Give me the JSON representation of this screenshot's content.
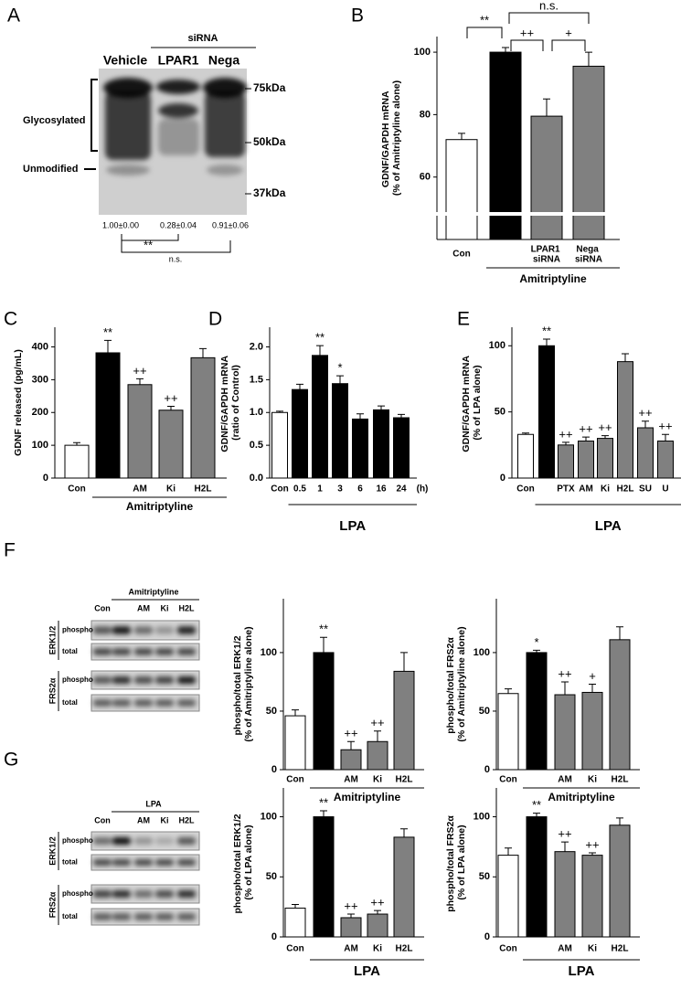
{
  "panel_labels": [
    "A",
    "B",
    "C",
    "D",
    "E",
    "F",
    "G"
  ],
  "blot_a": {
    "group_label": "siRNA",
    "lanes": [
      "Vehicle",
      "LPAR1",
      "Nega"
    ],
    "markers": [
      "75kDa",
      "50kDa",
      "37kDa"
    ],
    "glycosylated": "Glycosylated",
    "unmodified": "Unmodified",
    "quantification": [
      "1.00±0.00",
      "0.28±0.04",
      "0.91±0.06"
    ],
    "comparisons": [
      "**",
      "n.s."
    ]
  },
  "blot_f": {
    "group_label": "Amitriptyline",
    "lanes": [
      "Con",
      null,
      "AM",
      "Ki",
      "H2L"
    ],
    "proteins": [
      "ERK1/2",
      "FRS2α"
    ],
    "rows": [
      "phospho",
      "total",
      "phospho",
      "total"
    ]
  },
  "blot_g": {
    "group_label": "LPA",
    "lanes": [
      "Con",
      null,
      "AM",
      "Ki",
      "H2L"
    ],
    "proteins": [
      "ERK1/2",
      "FRS2α"
    ],
    "rows": [
      "phospho",
      "total",
      "phospho",
      "total"
    ]
  },
  "chart_data": [
    {
      "type": "bar",
      "y_label": "GDNF/GAPDH mRNA\n(% of Amitriptyline alone)",
      "categories": [
        "Con",
        null,
        "LPAR1\nsiRNA",
        "Nega\nsiRNA"
      ],
      "values": [
        72,
        100,
        79.5,
        95.5
      ],
      "errors": [
        2,
        1.5,
        5.5,
        4.5
      ],
      "colors": [
        "#ffffff",
        "#000000",
        "#808080",
        "#808080"
      ],
      "comparisons": [
        "**",
        "n.s.",
        "++",
        "+"
      ],
      "group_label": "Amitriptyline",
      "ylim": [
        40,
        105
      ],
      "yticks": [
        60,
        80,
        100
      ]
    },
    {
      "type": "bar",
      "y_label": "GDNF released (pg/mL)",
      "categories": [
        "Con",
        null,
        "AM",
        "Ki",
        "H2L"
      ],
      "values": [
        100,
        382,
        285,
        207,
        367
      ],
      "errors": [
        8,
        38,
        18,
        12,
        28
      ],
      "colors": [
        "#ffffff",
        "#000000",
        "#808080",
        "#808080",
        "#808080"
      ],
      "bar_labels": [
        null,
        "**",
        "++",
        "++",
        null
      ],
      "group_label": "Amitriptyline",
      "ylim": [
        0,
        460
      ],
      "yticks": [
        0,
        100,
        200,
        300,
        400
      ]
    },
    {
      "type": "bar",
      "y_label": "GDNF/GAPDH mRNA\n(ratio of Control)",
      "categories": [
        "Con",
        "0.5",
        "1",
        "3",
        "6",
        "16",
        "24"
      ],
      "x_unit": "(h)",
      "values": [
        1.0,
        1.35,
        1.87,
        1.44,
        0.9,
        1.04,
        0.92
      ],
      "errors": [
        0.02,
        0.08,
        0.15,
        0.12,
        0.08,
        0.06,
        0.05
      ],
      "colors": [
        "#ffffff",
        "#000000",
        "#000000",
        "#000000",
        "#000000",
        "#000000",
        "#000000"
      ],
      "bar_labels": [
        null,
        null,
        "**",
        "*",
        null,
        null,
        null
      ],
      "group_label": "LPA",
      "ylim": [
        0,
        2.3
      ],
      "yticks": [
        {
          "value": 0,
          "label": "0.0"
        },
        0.5,
        {
          "value": 1,
          "label": "1.0"
        },
        1.5,
        {
          "value": 2,
          "label": "2.0"
        }
      ]
    },
    {
      "type": "bar",
      "y_label": "GDNF/GAPDH mRNA\n(% of LPA alone)",
      "categories": [
        "Con",
        null,
        "PTX",
        "AM",
        "Ki",
        "H2L",
        "SU",
        "U"
      ],
      "values": [
        33,
        100,
        25,
        28,
        30,
        88,
        38,
        28
      ],
      "errors": [
        1,
        5,
        2,
        3,
        2,
        6,
        5,
        5
      ],
      "colors": [
        "#ffffff",
        "#000000",
        "#808080",
        "#808080",
        "#808080",
        "#808080",
        "#808080",
        "#808080"
      ],
      "bar_labels": [
        null,
        "**",
        "++",
        "++",
        "++",
        null,
        "++",
        "++"
      ],
      "group_label": "LPA",
      "ylim": [
        0,
        114
      ],
      "yticks": [
        0,
        50,
        100
      ]
    },
    {
      "type": "bar",
      "y_label": "phospho/total ERK1/2\n(% of Amitriptyline alone)",
      "categories": [
        "Con",
        null,
        "AM",
        "Ki",
        "H2L"
      ],
      "values": [
        46,
        100,
        17,
        24,
        84
      ],
      "errors": [
        5,
        13,
        7,
        9,
        16
      ],
      "colors": [
        "#ffffff",
        "#000000",
        "#808080",
        "#808080",
        "#808080"
      ],
      "bar_labels": [
        null,
        "**",
        "++",
        "++",
        null
      ],
      "group_label": "Amitriptyline",
      "ylim": [
        0,
        146
      ],
      "yticks": [
        0,
        50,
        100
      ]
    },
    {
      "type": "bar",
      "y_label": "phospho/total FRS2α\n(% of Amitriptyline alone)",
      "categories": [
        "Con",
        null,
        "AM",
        "Ki",
        "H2L"
      ],
      "values": [
        65,
        100,
        64,
        66,
        111
      ],
      "errors": [
        4,
        2,
        11,
        7,
        11
      ],
      "colors": [
        "#ffffff",
        "#000000",
        "#808080",
        "#808080",
        "#808080"
      ],
      "bar_labels": [
        null,
        "*",
        "++",
        "+",
        null
      ],
      "group_label": "Amitriptyline",
      "ylim": [
        0,
        146
      ],
      "yticks": [
        0,
        50,
        100
      ]
    },
    {
      "type": "bar",
      "y_label": "phospho/total ERK1/2\n(% of LPA alone)",
      "categories": [
        "Con",
        null,
        "AM",
        "Ki",
        "H2L"
      ],
      "values": [
        24,
        100,
        16,
        19,
        83
      ],
      "errors": [
        3,
        5,
        3,
        3,
        7
      ],
      "colors": [
        "#ffffff",
        "#000000",
        "#808080",
        "#808080",
        "#808080"
      ],
      "bar_labels": [
        null,
        "**",
        "++",
        "++",
        null
      ],
      "group_label": "LPA",
      "ylim": [
        0,
        124
      ],
      "yticks": [
        0,
        50,
        100
      ]
    },
    {
      "type": "bar",
      "y_label": "phospho/total FRS2α\n(% of LPA alone)",
      "categories": [
        "Con",
        null,
        "AM",
        "Ki",
        "H2L"
      ],
      "values": [
        68,
        100,
        71,
        68,
        93
      ],
      "errors": [
        6,
        3,
        8,
        2,
        6
      ],
      "colors": [
        "#ffffff",
        "#000000",
        "#808080",
        "#808080",
        "#808080"
      ],
      "bar_labels": [
        null,
        "**",
        "++",
        "++",
        null
      ],
      "group_label": "LPA",
      "ylim": [
        0,
        124
      ],
      "yticks": [
        0,
        50,
        100
      ]
    }
  ]
}
